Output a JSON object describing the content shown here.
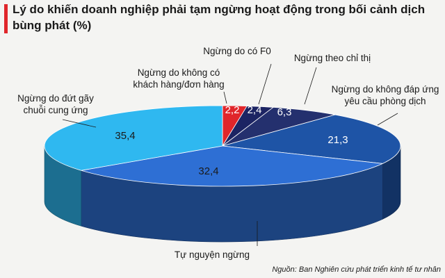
{
  "title": "Lý do khiến doanh nghiệp phải tạm ngừng hoạt động trong bối cảnh dịch bùng phát (%)",
  "source": "Nguồn: Ban Nghiên cứu phát triển kinh tế tư nhân",
  "colors": {
    "accent": "#e0262b"
  },
  "chart_data": {
    "type": "pie",
    "style": "3d",
    "title": "Lý do khiến doanh nghiệp phải tạm ngừng hoạt động trong bối cảnh dịch bùng phát (%)",
    "slices": [
      {
        "label": "Ngừng do không có khách hàng/đơn hàng",
        "value": 2.2,
        "value_label": "2,2",
        "color": "#e0262b"
      },
      {
        "label": "Ngừng do có F0",
        "value": 2.4,
        "value_label": "2,4",
        "color": "#1c2463"
      },
      {
        "label": "Ngừng theo chỉ thị",
        "value": 6.3,
        "value_label": "6,3",
        "color": "#24306e"
      },
      {
        "label": "Ngừng do không đáp ứng yêu cầu phòng dịch",
        "value": 21.3,
        "value_label": "21,3",
        "color": "#1e54a6"
      },
      {
        "label": "Tự nguyện ngừng",
        "value": 32.4,
        "value_label": "32,4",
        "color": "#2e6fd4"
      },
      {
        "label": "Ngừng do đứt gãy chuỗi cung ứng",
        "value": 35.4,
        "value_label": "35,4",
        "color": "#2fb8f0"
      }
    ]
  }
}
